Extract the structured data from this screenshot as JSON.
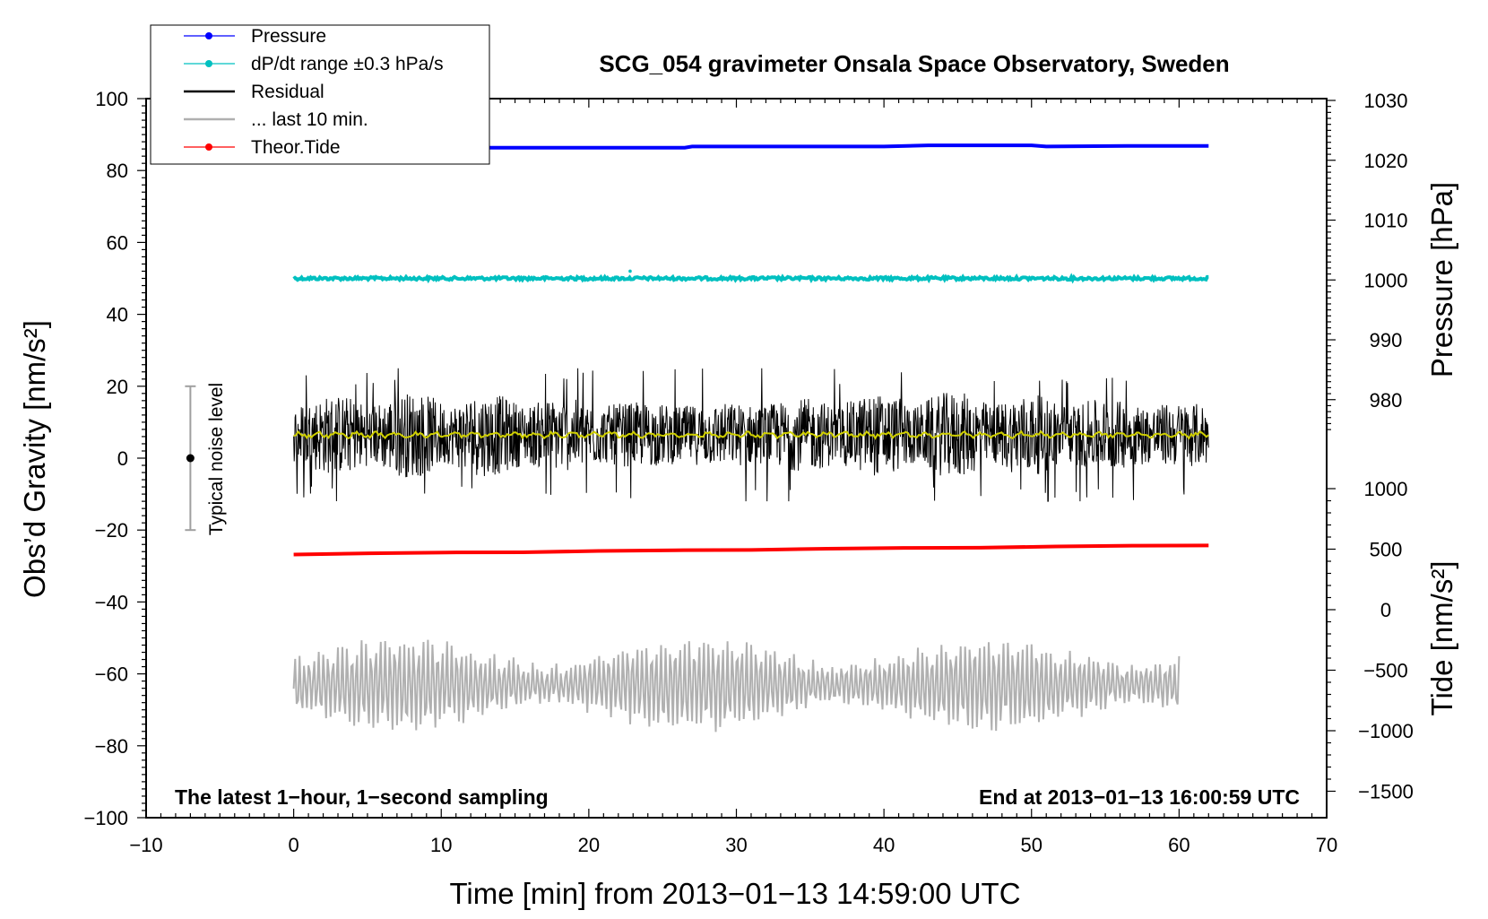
{
  "chart_data": {
    "type": "line",
    "title": "SCG_054 gravimeter Onsala Space Observatory, Sweden",
    "xlabel": "Time [min] from 2013−01−13 14:59:00 UTC",
    "ylabel_left": "Obs’d Gravity [nm/s²]",
    "ylabel_right_top": "Pressure [hPa]",
    "ylabel_right_bottom": "Tide [nm/s²]",
    "xlim": [
      -10,
      70
    ],
    "ylim_left": [
      -100,
      100
    ],
    "x_ticks": [
      "−10",
      "0",
      "10",
      "20",
      "30",
      "40",
      "50",
      "60",
      "70"
    ],
    "y_ticks_left": [
      "100",
      "80",
      "60",
      "40",
      "20",
      "0",
      "−20",
      "−40",
      "−60",
      "−80",
      "−100"
    ],
    "pressure_ticks": [
      "1030",
      "1020",
      "1010",
      "1000",
      "990",
      "980"
    ],
    "tide_ticks": [
      "1000",
      "500",
      "0",
      "−500",
      "−1000",
      "−1500"
    ],
    "grid": false,
    "legend_position": "top-left",
    "note_left": "The latest 1−hour, 1−second sampling",
    "note_right": "End at 2013−01−13 16:00:59 UTC",
    "noise_label": "Typical noise level",
    "noise_bar": {
      "x": -7,
      "center": 0,
      "range": [
        -20,
        20
      ]
    },
    "series": [
      {
        "name": "Pressure",
        "color": "#0000ff",
        "axis": "pressure_hPa",
        "x": [
          0,
          10,
          20,
          26.5,
          27,
          40,
          43,
          50,
          51,
          56.5,
          62
        ],
        "y": [
          1022.1,
          1022.1,
          1022.1,
          1022.1,
          1022.3,
          1022.3,
          1022.5,
          1022.5,
          1022.3,
          1022.4,
          1022.4
        ]
      },
      {
        "name": "dP/dt range ±0.3 hPa/s",
        "color": "#00c0c0",
        "axis": "left_nm_s2",
        "x": [
          0,
          62
        ],
        "y": [
          50,
          50
        ]
      },
      {
        "name": "Residual",
        "color": "#000000",
        "axis": "left_nm_s2",
        "x_range": [
          0,
          62
        ],
        "mean": 6.5,
        "range": [
          -12,
          25
        ]
      },
      {
        "name": "... last 10 min.",
        "color": "#b0b0b0",
        "axis": "left_nm_s2",
        "x_range": [
          0,
          60
        ],
        "mean": -63,
        "range": [
          -77,
          -48
        ]
      },
      {
        "name": "Theor.Tide",
        "color": "#ff0000",
        "axis": "tide_nm_s2",
        "x": [
          0,
          62
        ],
        "y": [
          460,
          535
        ]
      }
    ],
    "running_mean_color": "#d0d000"
  }
}
